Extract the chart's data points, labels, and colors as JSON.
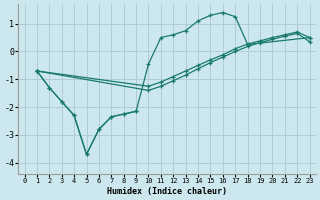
{
  "xlabel": "Humidex (Indice chaleur)",
  "bg_color": "#cce8ee",
  "grid_color": "#b0cdd4",
  "line_color": "#1a7a6e",
  "xlim": [
    -0.5,
    23.5
  ],
  "ylim": [
    -4.4,
    1.7
  ],
  "xticks": [
    0,
    1,
    2,
    3,
    4,
    5,
    6,
    7,
    8,
    9,
    10,
    11,
    12,
    13,
    14,
    15,
    16,
    17,
    18,
    19,
    20,
    21,
    22,
    23
  ],
  "yticks": [
    -4,
    -3,
    -2,
    -1,
    0,
    1
  ],
  "curve_jagged_x": [
    1,
    2,
    3,
    4,
    5,
    6,
    7,
    8,
    9
  ],
  "curve_jagged_y": [
    -0.7,
    -1.3,
    -1.8,
    -2.3,
    -3.7,
    -2.8,
    -2.35,
    -2.25,
    -2.15
  ],
  "curve_peak_x": [
    1,
    2,
    3,
    4,
    5,
    6,
    7,
    8,
    9,
    10,
    11,
    12,
    13,
    14,
    15,
    16,
    17,
    18,
    23
  ],
  "curve_peak_y": [
    -0.7,
    -1.3,
    -1.8,
    -2.3,
    -3.7,
    -2.8,
    -2.35,
    -2.25,
    -2.15,
    -0.45,
    0.5,
    0.6,
    0.75,
    1.1,
    1.3,
    1.4,
    1.25,
    0.25,
    0.5
  ],
  "curve_linear_x": [
    1,
    10,
    11,
    12,
    13,
    14,
    15,
    16,
    17,
    18,
    19,
    20,
    21,
    22,
    23
  ],
  "curve_linear_y": [
    -0.7,
    -1.25,
    -1.1,
    -0.9,
    -0.7,
    -0.5,
    -0.3,
    -0.12,
    0.1,
    0.27,
    0.38,
    0.5,
    0.6,
    0.7,
    0.5
  ],
  "curve_linear2_x": [
    1,
    10,
    11,
    12,
    13,
    14,
    15,
    16,
    17,
    18,
    19,
    20,
    21,
    22,
    23
  ],
  "curve_linear2_y": [
    -0.7,
    -1.4,
    -1.25,
    -1.05,
    -0.85,
    -0.62,
    -0.4,
    -0.2,
    0.0,
    0.18,
    0.32,
    0.44,
    0.55,
    0.65,
    0.35
  ]
}
